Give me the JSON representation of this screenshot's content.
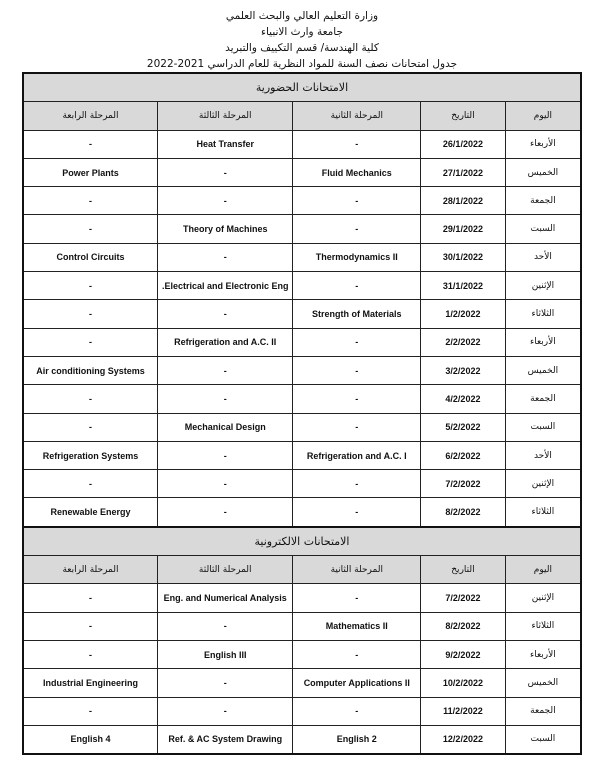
{
  "header": {
    "line1": "وزارة التعليم العالي والبحث العلمي",
    "line2": "جامعة وارث الانبياء",
    "line3": "كلية الهندسة/ قسم التكييف والتبريد",
    "line4": "جدول امتحانات نصف السنة للمواد النظرية للعام الدراسي 2021-2022"
  },
  "columns": [
    "اليوم",
    "التاريخ",
    "المرحلة الثانية",
    "المرحلة الثالثة",
    "المرحلة الرابعة"
  ],
  "sections": [
    {
      "title": "الامتحانات الحضورية",
      "rows": [
        [
          "الأربعاء",
          "26/1/2022",
          "-",
          "Heat Transfer",
          "-"
        ],
        [
          "الخميس",
          "27/1/2022",
          "Fluid Mechanics",
          "-",
          "Power Plants"
        ],
        [
          "الجمعة",
          "28/1/2022",
          "-",
          "-",
          "-"
        ],
        [
          "السبت",
          "29/1/2022",
          "-",
          "Theory of Machines",
          "-"
        ],
        [
          "الأحد",
          "30/1/2022",
          "Thermodynamics II",
          "-",
          "Control Circuits"
        ],
        [
          "الإثنين",
          "31/1/2022",
          "-",
          "Electrical and Electronic Eng.",
          "-"
        ],
        [
          "الثلاثاء",
          "1/2/2022",
          "Strength of Materials",
          "-",
          "-"
        ],
        [
          "الأربعاء",
          "2/2/2022",
          "-",
          "Refrigeration and A.C. II",
          "-"
        ],
        [
          "الخميس",
          "3/2/2022",
          "-",
          "-",
          "Air conditioning Systems"
        ],
        [
          "الجمعة",
          "4/2/2022",
          "-",
          "-",
          "-"
        ],
        [
          "السبت",
          "5/2/2022",
          "-",
          "Mechanical Design",
          "-"
        ],
        [
          "الأحد",
          "6/2/2022",
          "Refrigeration and A.C. I",
          "-",
          "Refrigeration Systems"
        ],
        [
          "الإثنين",
          "7/2/2022",
          "-",
          "-",
          "-"
        ],
        [
          "الثلاثاء",
          "8/2/2022",
          "-",
          "-",
          "Renewable Energy"
        ]
      ]
    },
    {
      "title": "الامتحانات الالكترونية",
      "rows": [
        [
          "الإثنين",
          "7/2/2022",
          "-",
          "Eng. and Numerical Analysis",
          "-"
        ],
        [
          "الثلاثاء",
          "8/2/2022",
          "Mathematics II",
          "-",
          "-"
        ],
        [
          "الأربعاء",
          "9/2/2022",
          "-",
          "English III",
          "-"
        ],
        [
          "الخميس",
          "10/2/2022",
          "Computer Applications II",
          "-",
          "Industrial Engineering"
        ],
        [
          "الجمعة",
          "11/2/2022",
          "-",
          "-",
          "-"
        ],
        [
          "السبت",
          "12/2/2022",
          "English 2",
          "Ref. & AC System Drawing",
          "English 4"
        ]
      ]
    }
  ]
}
